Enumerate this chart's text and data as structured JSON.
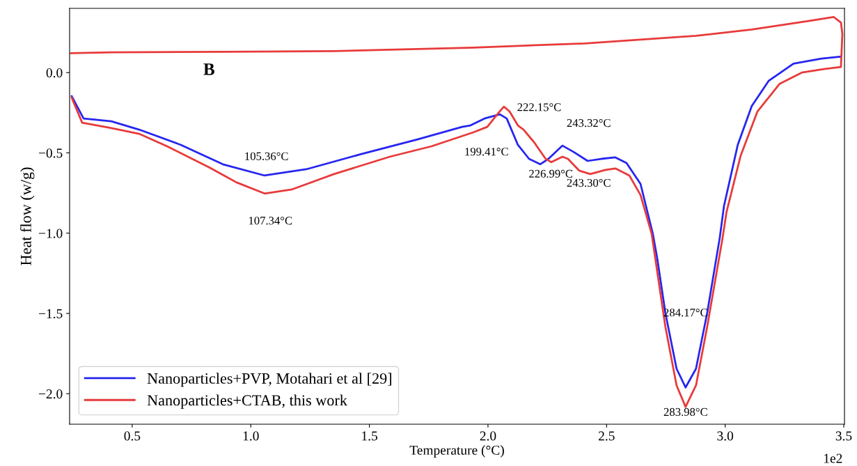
{
  "chart_data": {
    "type": "line",
    "xlabel": "Temperature (°C)",
    "ylabel": "Heat flow (w/g)",
    "xlim": [
      0.236,
      3.503
    ],
    "ylim": [
      -2.19,
      0.4
    ],
    "xticks": [
      0.5,
      {
        "value": 1,
        "label": "1.0"
      },
      1.5,
      {
        "value": 2,
        "label": "2.0"
      },
      2.5,
      {
        "value": 3,
        "label": "3.0"
      },
      3.5
    ],
    "yticks": [
      {
        "value": 0,
        "label": "0.0"
      },
      -0.5,
      {
        "value": -1,
        "label": "−1.0"
      },
      -1.5,
      {
        "value": -2,
        "label": "−2.0"
      }
    ],
    "grid": false,
    "legend": "bottom left",
    "marker": "none",
    "line_style": "solid",
    "series": [
      {
        "name": "Nanoparticles+PVP, Motahari et al [29]",
        "color": "#2626f0",
        "x": [
          0.245,
          0.295,
          0.412,
          0.529,
          0.705,
          0.882,
          1.058,
          1.234,
          1.469,
          1.703,
          1.891,
          1.926,
          1.985,
          2.05,
          2.079,
          2.126,
          2.173,
          2.22,
          2.255,
          2.314,
          2.361,
          2.42,
          2.478,
          2.537,
          2.584,
          2.643,
          2.695,
          2.713,
          2.748,
          2.795,
          2.833,
          2.877,
          2.924,
          2.977,
          2.995,
          3.053,
          3.112,
          3.183,
          3.288,
          3.406,
          3.488
        ],
        "values": [
          -0.147,
          -0.286,
          -0.303,
          -0.355,
          -0.45,
          -0.571,
          -0.641,
          -0.602,
          -0.506,
          -0.416,
          -0.338,
          -0.329,
          -0.286,
          -0.26,
          -0.286,
          -0.45,
          -0.537,
          -0.571,
          -0.537,
          -0.455,
          -0.494,
          -0.55,
          -0.537,
          -0.528,
          -0.563,
          -0.693,
          -1.004,
          -1.152,
          -1.498,
          -1.844,
          -1.961,
          -1.844,
          -1.498,
          -1.03,
          -0.831,
          -0.45,
          -0.208,
          -0.052,
          0.056,
          0.087,
          0.1
        ]
      },
      {
        "name": "Nanoparticles+CTAB, this work",
        "color": "#e83a3a",
        "x": [
          0.245,
          0.289,
          0.412,
          0.529,
          0.647,
          0.823,
          0.94,
          1.058,
          1.175,
          1.351,
          1.586,
          1.762,
          1.938,
          1.997,
          2.044,
          2.067,
          2.091,
          2.126,
          2.15,
          2.196,
          2.243,
          2.267,
          2.314,
          2.337,
          2.384,
          2.431,
          2.496,
          2.537,
          2.596,
          2.643,
          2.69,
          2.748,
          2.795,
          2.833,
          2.877,
          2.924,
          2.989,
          3.006,
          3.065,
          3.136,
          3.23,
          3.323,
          3.417,
          3.488,
          3.494,
          3.488,
          3.458,
          3.347,
          3.112,
          2.877,
          2.408,
          1.938,
          1.703,
          1.351,
          0.882,
          0.412,
          0.242
        ],
        "values": [
          -0.156,
          -0.312,
          -0.346,
          -0.381,
          -0.459,
          -0.589,
          -0.684,
          -0.753,
          -0.727,
          -0.632,
          -0.524,
          -0.459,
          -0.372,
          -0.338,
          -0.251,
          -0.212,
          -0.242,
          -0.329,
          -0.355,
          -0.437,
          -0.537,
          -0.558,
          -0.524,
          -0.537,
          -0.61,
          -0.632,
          -0.606,
          -0.597,
          -0.641,
          -0.762,
          -1.004,
          -1.584,
          -1.948,
          -2.082,
          -1.948,
          -1.584,
          -1.03,
          -0.866,
          -0.519,
          -0.242,
          -0.069,
          0.0,
          0.022,
          0.035,
          0.242,
          0.312,
          0.346,
          0.32,
          0.268,
          0.229,
          0.182,
          0.156,
          0.147,
          0.134,
          0.13,
          0.126,
          0.121
        ]
      }
    ],
    "annotations": [
      "B",
      "1e2",
      "105.36°C",
      "107.34°C",
      "199.41°C",
      "222.15°C",
      "243.32°C",
      "226.99°C",
      "243.30°C",
      "284.17°C",
      "283.98°C"
    ]
  }
}
